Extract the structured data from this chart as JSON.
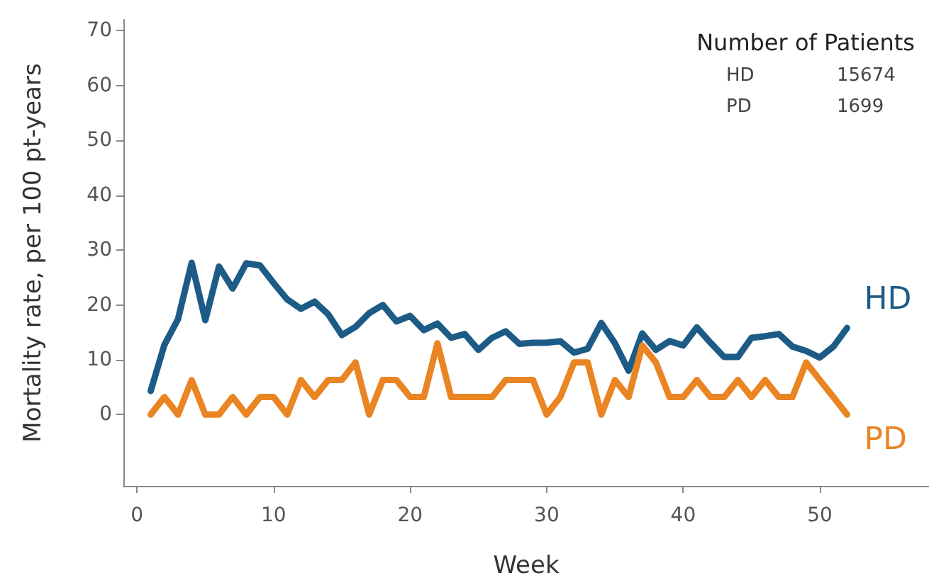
{
  "chart_data": {
    "type": "line",
    "xlabel": "Week",
    "ylabel": "Mortality rate, per 100 pt-years",
    "x": [
      1,
      2,
      3,
      4,
      5,
      6,
      7,
      8,
      9,
      10,
      11,
      12,
      13,
      14,
      15,
      16,
      17,
      18,
      19,
      20,
      21,
      22,
      23,
      24,
      25,
      26,
      27,
      28,
      29,
      30,
      31,
      32,
      33,
      34,
      35,
      36,
      37,
      38,
      39,
      40,
      41,
      42,
      43,
      44,
      45,
      46,
      47,
      48,
      49,
      50,
      51,
      52
    ],
    "series": [
      {
        "name": "HD",
        "color": "#1d5b87",
        "values": [
          4.3,
          12.7,
          17.4,
          27.7,
          17.2,
          27,
          23,
          27.6,
          27.2,
          24,
          21,
          19.3,
          20.6,
          18.3,
          14.5,
          16,
          18.5,
          20,
          17,
          18,
          15.4,
          16.6,
          14,
          14.7,
          11.8,
          14,
          15.2,
          12.9,
          13.1,
          13.1,
          13.4,
          11.3,
          12,
          16.7,
          13,
          8,
          14.8,
          11.8,
          13.4,
          12.6,
          15.9,
          13.1,
          10.5,
          10.5,
          14,
          14.3,
          14.7,
          12.4,
          11.6,
          10.4,
          12.4,
          15.8
        ]
      },
      {
        "name": "PD",
        "color": "#ea8523",
        "values": [
          0,
          3.2,
          0,
          6.3,
          0,
          0,
          3.2,
          0,
          3.2,
          3.2,
          0,
          6.3,
          3.2,
          6.3,
          6.3,
          9.5,
          0,
          6.3,
          6.3,
          3.2,
          3.2,
          13,
          3.2,
          3.2,
          3.2,
          3.2,
          6.3,
          6.3,
          6.3,
          0,
          3.2,
          9.5,
          9.5,
          0,
          6.3,
          3.2,
          12.6,
          9.5,
          3.2,
          3.2,
          6.3,
          3.2,
          3.2,
          6.3,
          3.2,
          6.3,
          3.2,
          3.2,
          9.5,
          6.3,
          3.2,
          0
        ]
      }
    ],
    "xlim": [
      -1,
      58
    ],
    "xticks": [
      0,
      10,
      20,
      30,
      40,
      50
    ],
    "ylim": [
      -13,
      72
    ],
    "yticks": [
      0,
      10,
      20,
      30,
      40,
      50,
      60,
      70
    ],
    "annotations": [
      "Number of Patients",
      "HD",
      "15674",
      "PD",
      "1699"
    ],
    "grid": false,
    "legend": false,
    "marker": "none",
    "line_style": "solid"
  }
}
